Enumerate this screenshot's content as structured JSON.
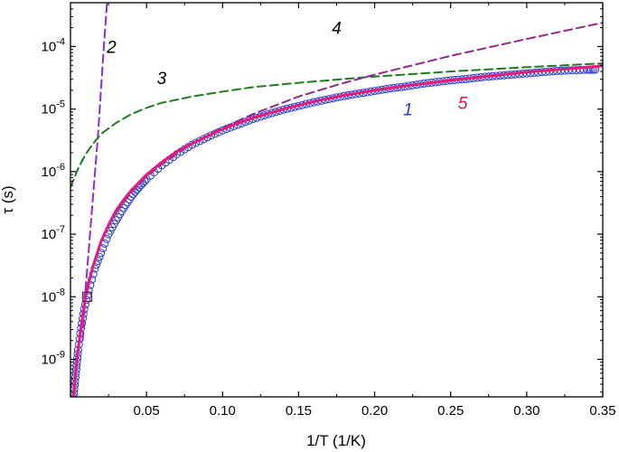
{
  "chart_data": {
    "type": "scatter",
    "xlabel": "1/T (1/K)",
    "ylabel": "τ (s)",
    "xlim": [
      0.0,
      0.35
    ],
    "ylim_log10": [
      -9.6,
      -3.3
    ],
    "yscale": "log",
    "grid": false,
    "x_ticks": [
      0.05,
      0.1,
      0.15,
      0.2,
      0.25,
      0.3,
      0.35
    ],
    "x_tick_labels": [
      "0.05",
      "0.10",
      "0.15",
      "0.20",
      "0.25",
      "0.30",
      "0.35"
    ],
    "y_ticks_exp": [
      -9,
      -8,
      -7,
      -6,
      -5,
      -4
    ],
    "y_tick_labels": [
      {
        "base": "10",
        "exp": "-9"
      },
      {
        "base": "10",
        "exp": "-8"
      },
      {
        "base": "10",
        "exp": "-7"
      },
      {
        "base": "10",
        "exp": "-6"
      },
      {
        "base": "10",
        "exp": "-5"
      },
      {
        "base": "10",
        "exp": "-4"
      }
    ],
    "series": [
      {
        "name": "1",
        "kind": "markers",
        "marker": "open-circle",
        "color": "#2a3fd6",
        "x": [
          0.002,
          0.003,
          0.004,
          0.005,
          0.007,
          0.009,
          0.012,
          0.016,
          0.02,
          0.025,
          0.03,
          0.035,
          0.04,
          0.045,
          0.05,
          0.06,
          0.07,
          0.08,
          0.09,
          0.1,
          0.11,
          0.12,
          0.13,
          0.14,
          0.15,
          0.16,
          0.17,
          0.18,
          0.19,
          0.2,
          0.21,
          0.22,
          0.23,
          0.24,
          0.25,
          0.26,
          0.27,
          0.28,
          0.29,
          0.3,
          0.31,
          0.32,
          0.33,
          0.34,
          0.345
        ],
        "y_log10": [
          -9.6,
          -9.35,
          -9.1,
          -8.85,
          -8.5,
          -8.2,
          -7.9,
          -7.55,
          -7.3,
          -7.0,
          -6.78,
          -6.58,
          -6.4,
          -6.25,
          -6.12,
          -5.9,
          -5.72,
          -5.57,
          -5.45,
          -5.34,
          -5.25,
          -5.16,
          -5.08,
          -5.01,
          -4.95,
          -4.89,
          -4.84,
          -4.79,
          -4.75,
          -4.71,
          -4.67,
          -4.64,
          -4.6,
          -4.57,
          -4.54,
          -4.52,
          -4.49,
          -4.47,
          -4.45,
          -4.43,
          -4.41,
          -4.39,
          -4.38,
          -4.37,
          -4.37
        ]
      },
      {
        "name": "2",
        "kind": "line",
        "dash": "dashed",
        "color": "#8a2be2",
        "x": [
          0.008,
          0.01,
          0.012,
          0.015,
          0.018,
          0.021,
          0.024
        ],
        "y_log10": [
          -8.7,
          -7.86,
          -7.25,
          -6.35,
          -5.45,
          -4.35,
          -3.3
        ]
      },
      {
        "name": "3",
        "kind": "line",
        "dash": "dashed",
        "color": "#1f7a1f",
        "x": [
          0.0,
          0.005,
          0.01,
          0.015,
          0.02,
          0.03,
          0.04,
          0.05,
          0.06,
          0.08,
          0.1,
          0.12,
          0.15,
          0.18,
          0.2,
          0.25,
          0.3,
          0.35
        ],
        "y_log10": [
          -6.25,
          -5.95,
          -5.72,
          -5.55,
          -5.4,
          -5.22,
          -5.08,
          -4.98,
          -4.9,
          -4.8,
          -4.72,
          -4.65,
          -4.58,
          -4.52,
          -4.48,
          -4.4,
          -4.33,
          -4.27
        ]
      },
      {
        "name": "4",
        "kind": "line",
        "dash": "dashed",
        "color": "#8e2a8e",
        "x": [
          0.03,
          0.04,
          0.05,
          0.06,
          0.08,
          0.1,
          0.12,
          0.15,
          0.18,
          0.2,
          0.25,
          0.3,
          0.35
        ],
        "y_log10": [
          -6.65,
          -6.33,
          -6.08,
          -5.88,
          -5.55,
          -5.3,
          -5.08,
          -4.8,
          -4.58,
          -4.45,
          -4.15,
          -3.88,
          -3.62
        ]
      },
      {
        "name": "5",
        "kind": "line",
        "dash": "solid",
        "color": "#e8197a",
        "x": [
          0.002,
          0.004,
          0.006,
          0.008,
          0.01,
          0.012,
          0.015,
          0.02,
          0.025,
          0.03,
          0.035,
          0.04,
          0.05,
          0.06,
          0.07,
          0.08,
          0.1,
          0.12,
          0.14,
          0.16,
          0.18,
          0.2,
          0.22,
          0.25,
          0.28,
          0.3,
          0.33,
          0.35
        ],
        "y_log10": [
          -9.6,
          -9.05,
          -8.65,
          -8.3,
          -8.0,
          -7.78,
          -7.5,
          -7.12,
          -6.85,
          -6.62,
          -6.45,
          -6.3,
          -6.05,
          -5.85,
          -5.68,
          -5.55,
          -5.32,
          -5.14,
          -5.0,
          -4.88,
          -4.78,
          -4.7,
          -4.63,
          -4.54,
          -4.46,
          -4.41,
          -4.35,
          -4.31
        ]
      }
    ],
    "annotations": [
      {
        "text": "1",
        "x": 0.222,
        "y_log10": -5.1,
        "color": "#1f3fd0"
      },
      {
        "text": "2",
        "x": 0.027,
        "y_log10": -4.1,
        "color": "#000000"
      },
      {
        "text": "3",
        "x": 0.06,
        "y_log10": -4.6,
        "color": "#000000"
      },
      {
        "text": "4",
        "x": 0.175,
        "y_log10": -3.8,
        "color": "#000000"
      },
      {
        "text": "5",
        "x": 0.258,
        "y_log10": -5.0,
        "color": "#e0104a"
      }
    ],
    "highlight_point": {
      "x": 0.011,
      "y_log10": -8.0,
      "marker": "open-square"
    }
  }
}
